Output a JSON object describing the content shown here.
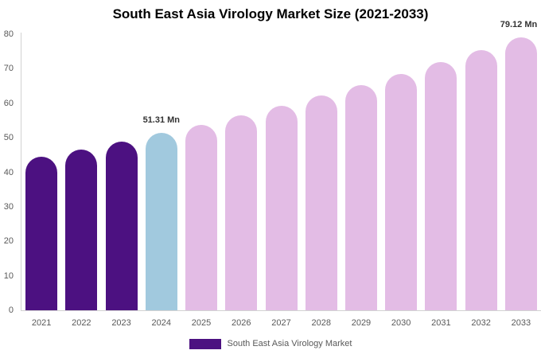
{
  "chart_data": {
    "type": "bar",
    "title": "South East Asia Virology Market Size (2021-2033)",
    "xlabel": "",
    "ylabel": "",
    "categories": [
      "2021",
      "2022",
      "2023",
      "2024",
      "2025",
      "2026",
      "2027",
      "2028",
      "2029",
      "2030",
      "2031",
      "2032",
      "2033"
    ],
    "values": [
      44.4,
      46.6,
      48.9,
      51.31,
      53.8,
      56.5,
      59.3,
      62.2,
      65.3,
      68.5,
      71.9,
      75.4,
      79.12
    ],
    "unit": "Mn",
    "ylim": [
      0,
      80
    ],
    "y_ticks": [
      0,
      10,
      20,
      30,
      40,
      50,
      60,
      70,
      80
    ],
    "grid": false,
    "legend_position": "bottom",
    "bar_colors": [
      "#4C1181",
      "#4C1181",
      "#4C1181",
      "#A1C9DE",
      "#E3BCE5",
      "#E3BCE5",
      "#E3BCE5",
      "#E3BCE5",
      "#E3BCE5",
      "#E3BCE5",
      "#E3BCE5",
      "#E3BCE5",
      "#E3BCE5"
    ],
    "annotations": [
      {
        "category": "2024",
        "text": "51.31 Mn"
      },
      {
        "category": "2033",
        "text": "79.12 Mn"
      }
    ]
  },
  "legend": {
    "label": "South East Asia Virology Market",
    "swatch_color": "#4C1181"
  }
}
